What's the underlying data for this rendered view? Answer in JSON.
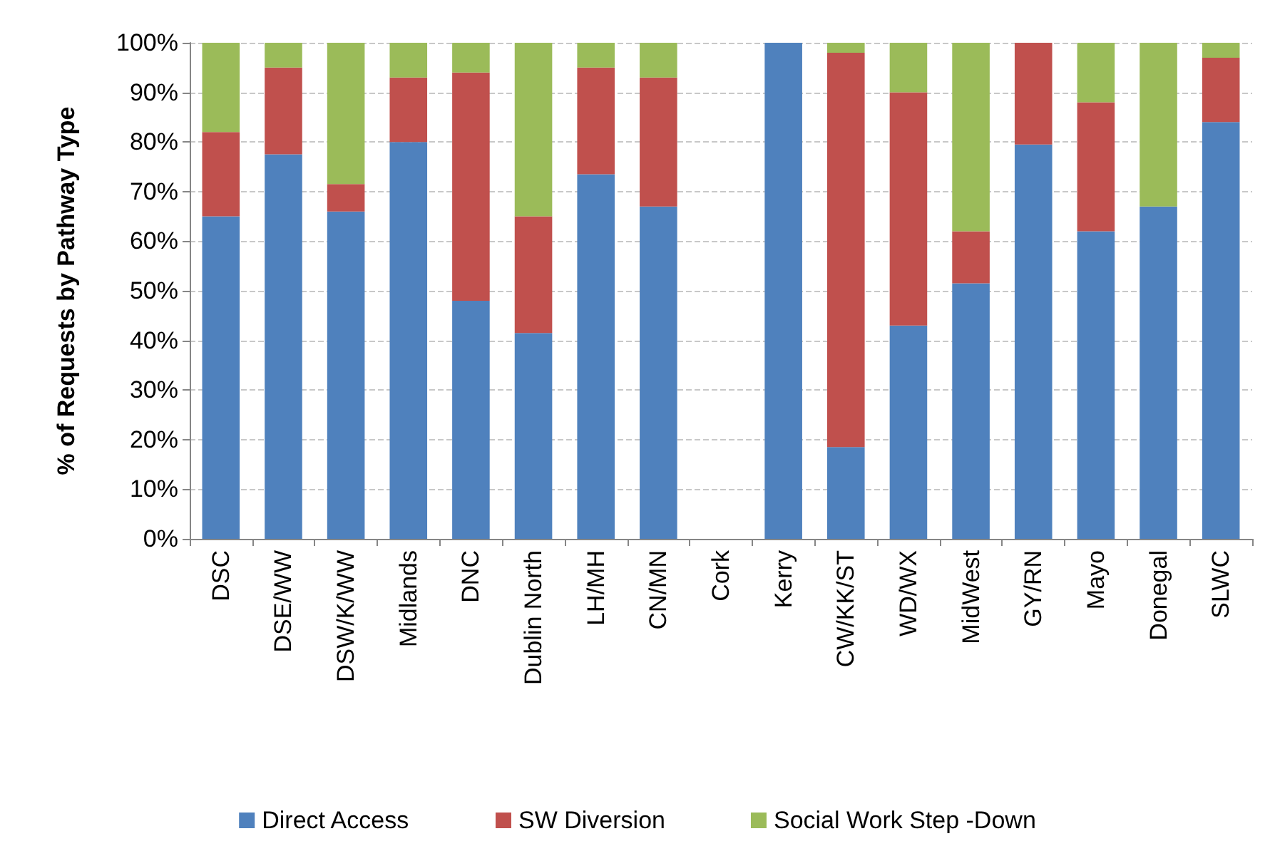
{
  "chart_data": {
    "type": "bar",
    "stacked": true,
    "ylabel": "% of Requests by Pathway Type",
    "categories": [
      "DSC",
      "DSE/WW",
      "DSW/K/WW",
      "Midlands",
      "DNC",
      "Dublin North",
      "LH/MH",
      "CN/MN",
      "Cork",
      "Kerry",
      "CW/KK/ST",
      "WD/WX",
      "MidWest",
      "GY/RN",
      "Mayo",
      "Donegal",
      "SLWC"
    ],
    "series": [
      {
        "name": "Direct Access",
        "color": "#4f81bd",
        "values": [
          65,
          77.5,
          66,
          80,
          48,
          41.5,
          73.5,
          67,
          null,
          100,
          18.5,
          43,
          51.5,
          79.5,
          62,
          67,
          84
        ]
      },
      {
        "name": "SW Diversion",
        "color": "#c0504d",
        "values": [
          17,
          17.5,
          5.5,
          13,
          46,
          23.5,
          21.5,
          26,
          null,
          0,
          79.5,
          47,
          10.5,
          20.5,
          26,
          0,
          13
        ]
      },
      {
        "name": "Social Work Step -Down",
        "color": "#9bbb59",
        "values": [
          18,
          5,
          28.5,
          7,
          6,
          35,
          5,
          7,
          null,
          0,
          2,
          10,
          38,
          0,
          12,
          33,
          3
        ]
      }
    ],
    "ylim": [
      0,
      100
    ],
    "yticks": [
      {
        "value": 0,
        "label": "0%"
      },
      {
        "value": 10,
        "label": "10%"
      },
      {
        "value": 20,
        "label": "20%"
      },
      {
        "value": 30,
        "label": "30%"
      },
      {
        "value": 40,
        "label": "40%"
      },
      {
        "value": 50,
        "label": "50%"
      },
      {
        "value": 60,
        "label": "60%"
      },
      {
        "value": 70,
        "label": "70%"
      },
      {
        "value": 80,
        "label": "80%"
      },
      {
        "value": 90,
        "label": "90%"
      },
      {
        "value": 100,
        "label": "100%"
      }
    ],
    "grid": "y",
    "legend": "bottom"
  }
}
